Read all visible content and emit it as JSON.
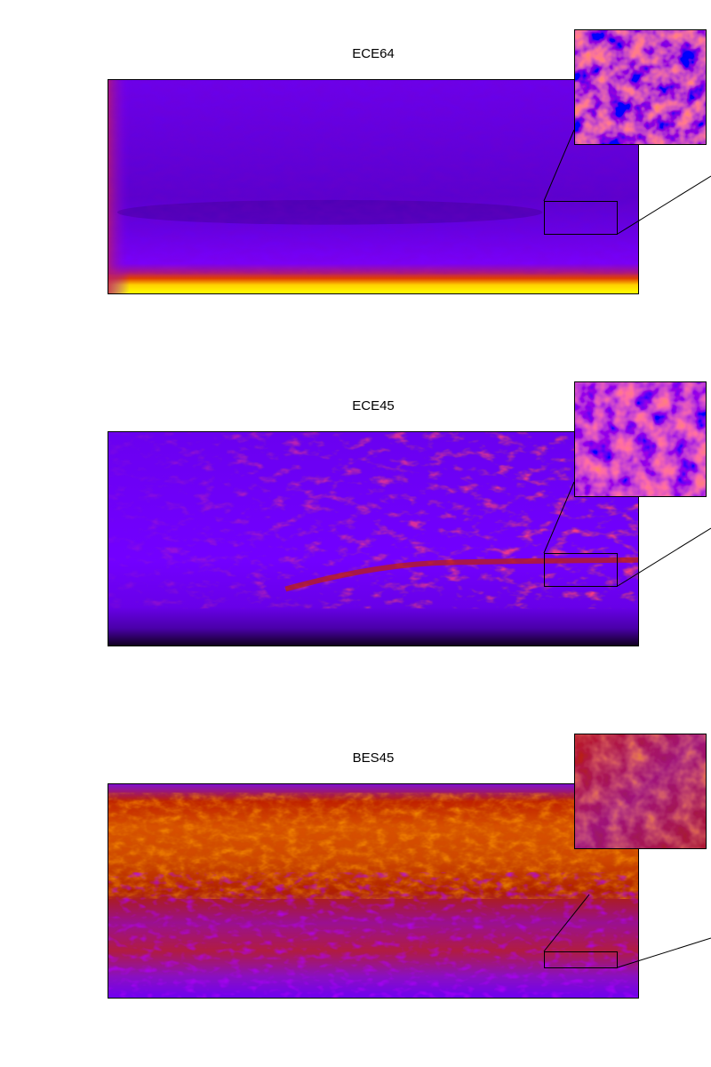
{
  "panels": [
    {
      "title": "ECE64"
    },
    {
      "title": "ECE45"
    },
    {
      "title": "BES45"
    }
  ],
  "colors": {
    "deep_purple": "#5a00c8",
    "violet": "#7a00ff",
    "magenta": "#9a1cb0",
    "red": "#c02000",
    "orange": "#e06000",
    "yellow": "#ffff00",
    "black": "#000000"
  }
}
